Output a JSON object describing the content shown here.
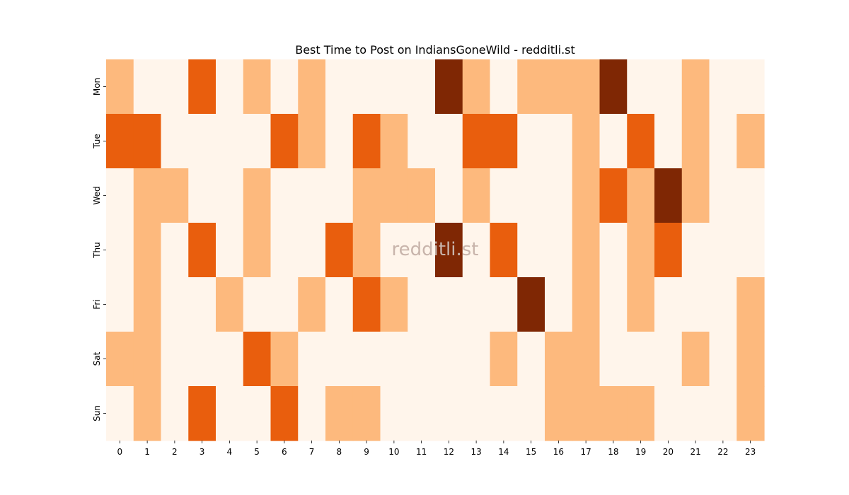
{
  "chart_data": {
    "type": "heatmap",
    "title": "Best Time to Post on IndiansGoneWild - redditli.st",
    "watermark": "redditli.st",
    "x_categories": [
      "0",
      "1",
      "2",
      "3",
      "4",
      "5",
      "6",
      "7",
      "8",
      "9",
      "10",
      "11",
      "12",
      "13",
      "14",
      "15",
      "16",
      "17",
      "18",
      "19",
      "20",
      "21",
      "22",
      "23"
    ],
    "y_categories": [
      "Mon",
      "Tue",
      "Wed",
      "Thu",
      "Fri",
      "Sat",
      "Sun"
    ],
    "levels": [
      [
        1,
        0,
        0,
        2,
        0,
        1,
        0,
        1,
        0,
        0,
        0,
        0,
        3,
        1,
        0,
        1,
        1,
        1,
        3,
        0,
        0,
        1,
        0,
        0
      ],
      [
        2,
        2,
        0,
        0,
        0,
        0,
        2,
        1,
        0,
        2,
        1,
        0,
        0,
        2,
        2,
        0,
        0,
        1,
        0,
        2,
        0,
        1,
        0,
        1
      ],
      [
        0,
        1,
        1,
        0,
        0,
        1,
        0,
        0,
        0,
        1,
        1,
        1,
        0,
        1,
        0,
        0,
        0,
        1,
        2,
        1,
        3,
        1,
        0,
        0
      ],
      [
        0,
        1,
        0,
        2,
        0,
        1,
        0,
        0,
        2,
        1,
        0,
        0,
        3,
        0,
        2,
        0,
        0,
        1,
        0,
        1,
        2,
        0,
        0,
        0
      ],
      [
        0,
        1,
        0,
        0,
        1,
        0,
        0,
        1,
        0,
        2,
        1,
        0,
        0,
        0,
        0,
        3,
        0,
        1,
        0,
        1,
        0,
        0,
        0,
        1
      ],
      [
        1,
        1,
        0,
        0,
        0,
        2,
        1,
        0,
        0,
        0,
        0,
        0,
        0,
        0,
        1,
        0,
        1,
        1,
        0,
        0,
        0,
        1,
        0,
        1
      ],
      [
        0,
        1,
        0,
        2,
        0,
        0,
        2,
        0,
        1,
        1,
        0,
        0,
        0,
        0,
        0,
        0,
        1,
        1,
        1,
        1,
        0,
        0,
        0,
        1
      ]
    ],
    "colors": [
      "#fff5eb",
      "#fdb97d",
      "#e95e0d",
      "#7f2704"
    ],
    "colormap": "Oranges",
    "grid": false,
    "legend": "none"
  }
}
